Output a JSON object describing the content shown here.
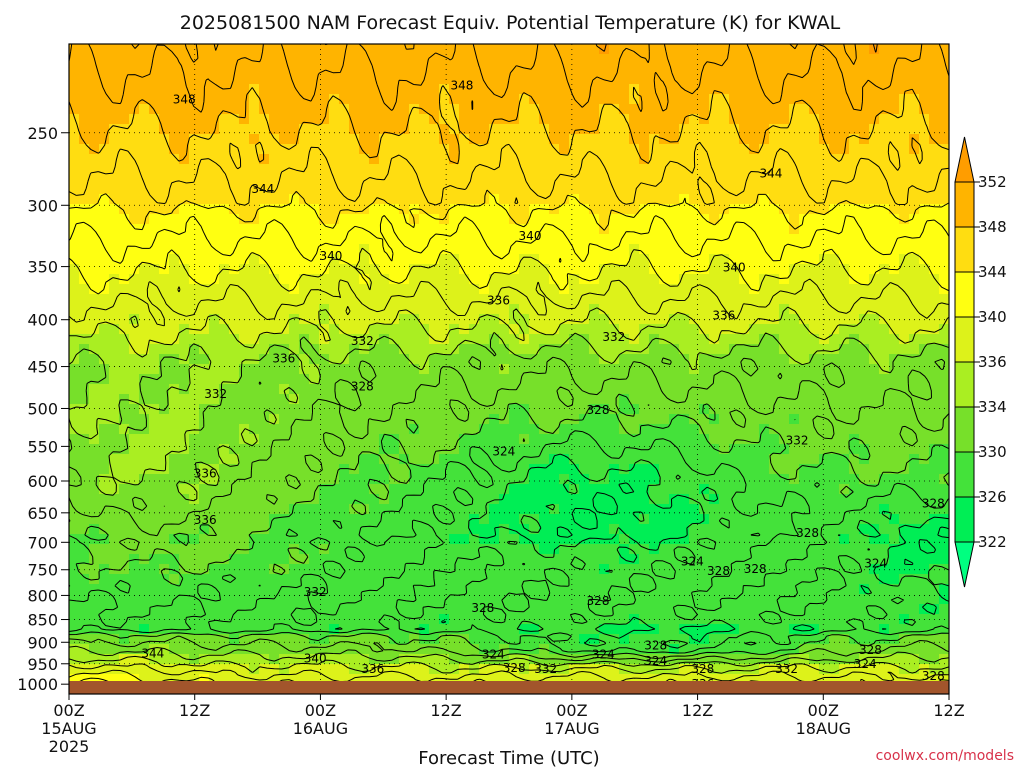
{
  "chart_data": {
    "type": "contour",
    "title": "2025081500 NAM Forecast Equiv. Potential Temperature (K) for KWAL",
    "xlabel": "Forecast Time (UTC)",
    "ylabel": "",
    "credit": "coolwx.com/models",
    "x_ticks": [
      {
        "top": "00Z",
        "mid": "15AUG",
        "bottom": "2025",
        "hour": 0
      },
      {
        "top": "12Z",
        "mid": "",
        "bottom": "",
        "hour": 12
      },
      {
        "top": "00Z",
        "mid": "16AUG",
        "bottom": "",
        "hour": 24
      },
      {
        "top": "12Z",
        "mid": "",
        "bottom": "",
        "hour": 36
      },
      {
        "top": "00Z",
        "mid": "17AUG",
        "bottom": "",
        "hour": 48
      },
      {
        "top": "12Z",
        "mid": "",
        "bottom": "",
        "hour": 60
      },
      {
        "top": "00Z",
        "mid": "18AUG",
        "bottom": "",
        "hour": 72
      },
      {
        "top": "12Z",
        "mid": "",
        "bottom": "",
        "hour": 84
      }
    ],
    "xlim_hours": [
      0,
      84
    ],
    "y_ticks": [
      1000,
      950,
      900,
      850,
      800,
      750,
      700,
      650,
      600,
      550,
      500,
      450,
      400,
      350,
      300,
      250
    ],
    "ylim_hpa": [
      1025,
      200
    ],
    "y_scale": "log-pressure",
    "grid": true,
    "colorbar": {
      "levels": [
        322,
        326,
        330,
        334,
        336,
        340,
        344,
        348,
        352
      ],
      "label_levels": [
        322,
        326,
        330,
        334,
        336,
        340,
        344,
        348,
        352
      ],
      "colors": [
        "#00ff80",
        "#00ee55",
        "#44e23a",
        "#77e02a",
        "#aaee22",
        "#ddf21a",
        "#ffff11",
        "#ffdd11",
        "#ffb400",
        "#ff9d00"
      ]
    },
    "contour_labels": [
      {
        "text": "348",
        "hour": 11.0,
        "p": 230
      },
      {
        "text": "348",
        "hour": 37.5,
        "p": 222
      },
      {
        "text": "344",
        "hour": 18.5,
        "p": 288
      },
      {
        "text": "344",
        "hour": 67.0,
        "p": 277
      },
      {
        "text": "340",
        "hour": 25.0,
        "p": 341
      },
      {
        "text": "340",
        "hour": 44.0,
        "p": 324
      },
      {
        "text": "340",
        "hour": 63.5,
        "p": 351
      },
      {
        "text": "336",
        "hour": 41.0,
        "p": 381
      },
      {
        "text": "336",
        "hour": 62.5,
        "p": 396
      },
      {
        "text": "336",
        "hour": 20.5,
        "p": 441
      },
      {
        "text": "332",
        "hour": 28.0,
        "p": 422
      },
      {
        "text": "332",
        "hour": 52.0,
        "p": 418
      },
      {
        "text": "332",
        "hour": 14.0,
        "p": 482
      },
      {
        "text": "332",
        "hour": 69.5,
        "p": 542
      },
      {
        "text": "328",
        "hour": 28.0,
        "p": 473
      },
      {
        "text": "328",
        "hour": 50.5,
        "p": 502
      },
      {
        "text": "328",
        "hour": 70.5,
        "p": 684
      },
      {
        "text": "328",
        "hour": 82.5,
        "p": 635
      },
      {
        "text": "324",
        "hour": 41.5,
        "p": 557
      },
      {
        "text": "336",
        "hour": 13.0,
        "p": 589
      },
      {
        "text": "336",
        "hour": 13.0,
        "p": 662
      },
      {
        "text": "332",
        "hour": 23.5,
        "p": 793
      },
      {
        "text": "328",
        "hour": 39.5,
        "p": 826
      },
      {
        "text": "328",
        "hour": 50.5,
        "p": 811
      },
      {
        "text": "324",
        "hour": 59.5,
        "p": 735
      },
      {
        "text": "328",
        "hour": 62.0,
        "p": 752
      },
      {
        "text": "328",
        "hour": 65.5,
        "p": 749
      },
      {
        "text": "324",
        "hour": 77.0,
        "p": 738
      },
      {
        "text": "344",
        "hour": 8.0,
        "p": 926
      },
      {
        "text": "340",
        "hour": 23.5,
        "p": 937
      },
      {
        "text": "336",
        "hour": 29.0,
        "p": 963
      },
      {
        "text": "324",
        "hour": 40.5,
        "p": 928
      },
      {
        "text": "328",
        "hour": 42.5,
        "p": 960
      },
      {
        "text": "332",
        "hour": 45.5,
        "p": 962
      },
      {
        "text": "324",
        "hour": 51.0,
        "p": 928
      },
      {
        "text": "328",
        "hour": 56.0,
        "p": 907
      },
      {
        "text": "324",
        "hour": 56.0,
        "p": 943
      },
      {
        "text": "328",
        "hour": 60.5,
        "p": 963
      },
      {
        "text": "336",
        "hour": 60.5,
        "p": 1000
      },
      {
        "text": "332",
        "hour": 68.5,
        "p": 963
      },
      {
        "text": "328",
        "hour": 76.5,
        "p": 918
      },
      {
        "text": "324",
        "hour": 76.0,
        "p": 950
      },
      {
        "text": "328",
        "hour": 82.5,
        "p": 980
      }
    ]
  }
}
